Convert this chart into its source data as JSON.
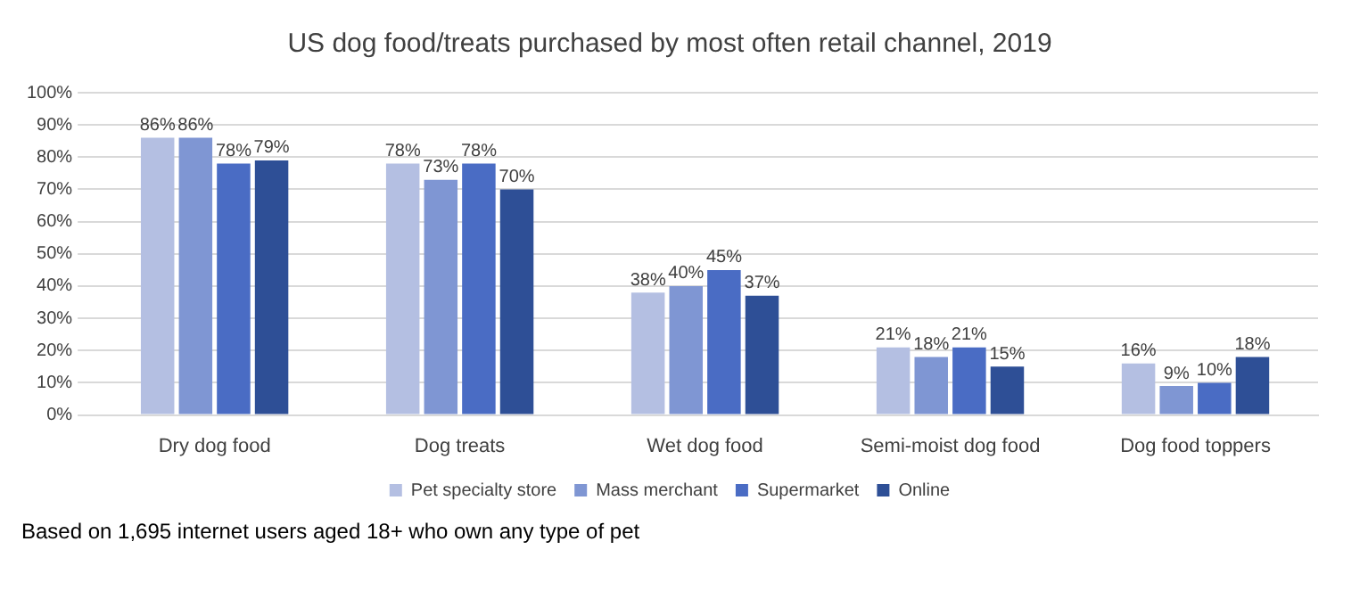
{
  "chart_data": {
    "type": "bar",
    "title": "US dog food/treats purchased by most often retail channel, 2019",
    "categories": [
      "Dry dog food",
      "Dog treats",
      "Wet dog food",
      "Semi-moist dog food",
      "Dog food toppers"
    ],
    "series": [
      {
        "name": "Pet specialty store",
        "color": "#b4bfe2",
        "values": [
          86,
          78,
          38,
          21,
          16
        ],
        "value_labels": [
          "86%",
          "78%",
          "38%",
          "21%",
          "16%"
        ]
      },
      {
        "name": "Mass merchant",
        "color": "#7f96d3",
        "values": [
          86,
          73,
          40,
          18,
          9
        ],
        "value_labels": [
          "86%",
          "73%",
          "40%",
          "18%",
          "9%"
        ]
      },
      {
        "name": "Supermarket",
        "color": "#4a6cc4",
        "values": [
          78,
          78,
          45,
          21,
          10
        ],
        "value_labels": [
          "78%",
          "78%",
          "45%",
          "21%",
          "10%"
        ]
      },
      {
        "name": "Online",
        "color": "#2e4f96",
        "values": [
          79,
          70,
          37,
          15,
          18
        ],
        "value_labels": [
          "79%",
          "70%",
          "37%",
          "15%",
          "18%"
        ]
      }
    ],
    "ylim": [
      0,
      100
    ],
    "yticks": [
      {
        "value": 0,
        "label": "0%"
      },
      {
        "value": 10,
        "label": "10%"
      },
      {
        "value": 20,
        "label": "20%"
      },
      {
        "value": 30,
        "label": "30%"
      },
      {
        "value": 40,
        "label": "40%"
      },
      {
        "value": 50,
        "label": "50%"
      },
      {
        "value": 60,
        "label": "60%"
      },
      {
        "value": 70,
        "label": "70%"
      },
      {
        "value": 80,
        "label": "80%"
      },
      {
        "value": 90,
        "label": "90%"
      },
      {
        "value": 100,
        "label": "100%"
      }
    ],
    "grid": "y",
    "legend": "bottom",
    "annotations": [
      "Based on 1,695 internet users aged 18+ who own any type of pet"
    ]
  }
}
